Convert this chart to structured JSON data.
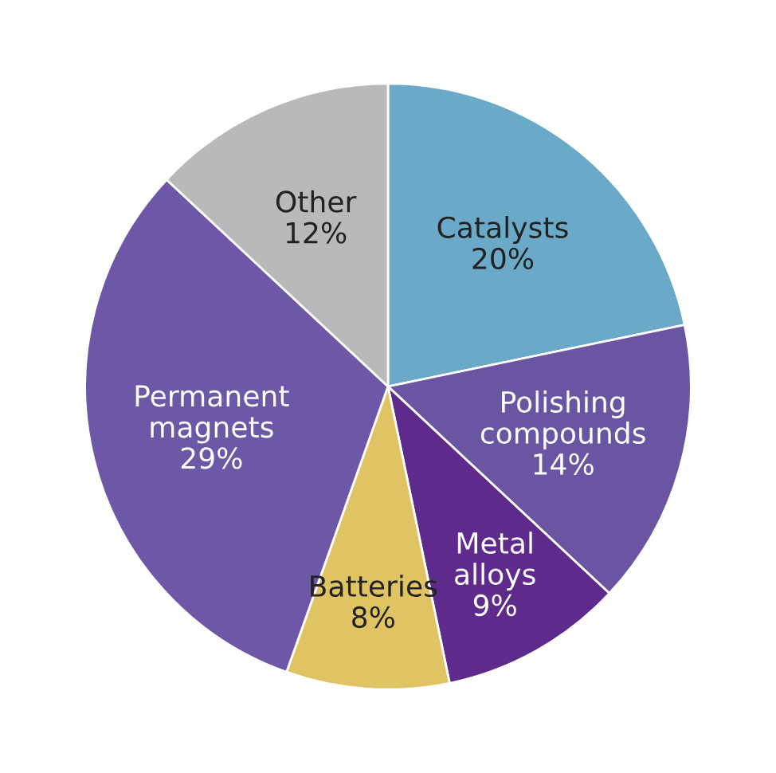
{
  "chart_data": {
    "type": "pie",
    "categories": [
      "Catalysts",
      "Polishing\ncompounds",
      "Metal\nalloys",
      "Batteries",
      "Permanent\nmagnets",
      "Other"
    ],
    "values": [
      20,
      14,
      9,
      8,
      29,
      12
    ],
    "value_labels": [
      "20%",
      "14%",
      "9%",
      "8%",
      "29%",
      "12%"
    ],
    "colors": [
      "#6aaac8",
      "#6a55a2",
      "#5e2b8c",
      "#e0c464",
      "#6c58a6",
      "#b9b9bb"
    ],
    "legend": false
  }
}
